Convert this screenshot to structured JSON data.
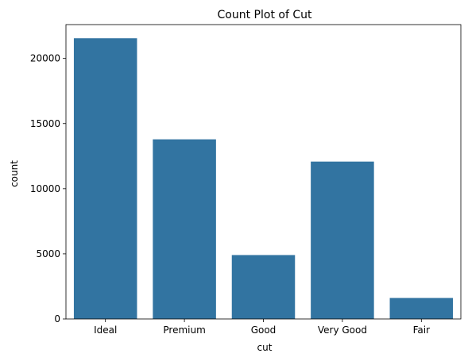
{
  "chart_data": {
    "type": "bar",
    "title": "Count Plot of Cut",
    "xlabel": "cut",
    "ylabel": "count",
    "categories": [
      "Ideal",
      "Premium",
      "Good",
      "Very Good",
      "Fair"
    ],
    "values": [
      21551,
      13791,
      4906,
      12082,
      1610
    ],
    "ylim": [
      0,
      22600
    ],
    "yticks": [
      0,
      5000,
      10000,
      15000,
      20000
    ],
    "bar_color": "#3274a1",
    "grid": false,
    "legend": false
  }
}
